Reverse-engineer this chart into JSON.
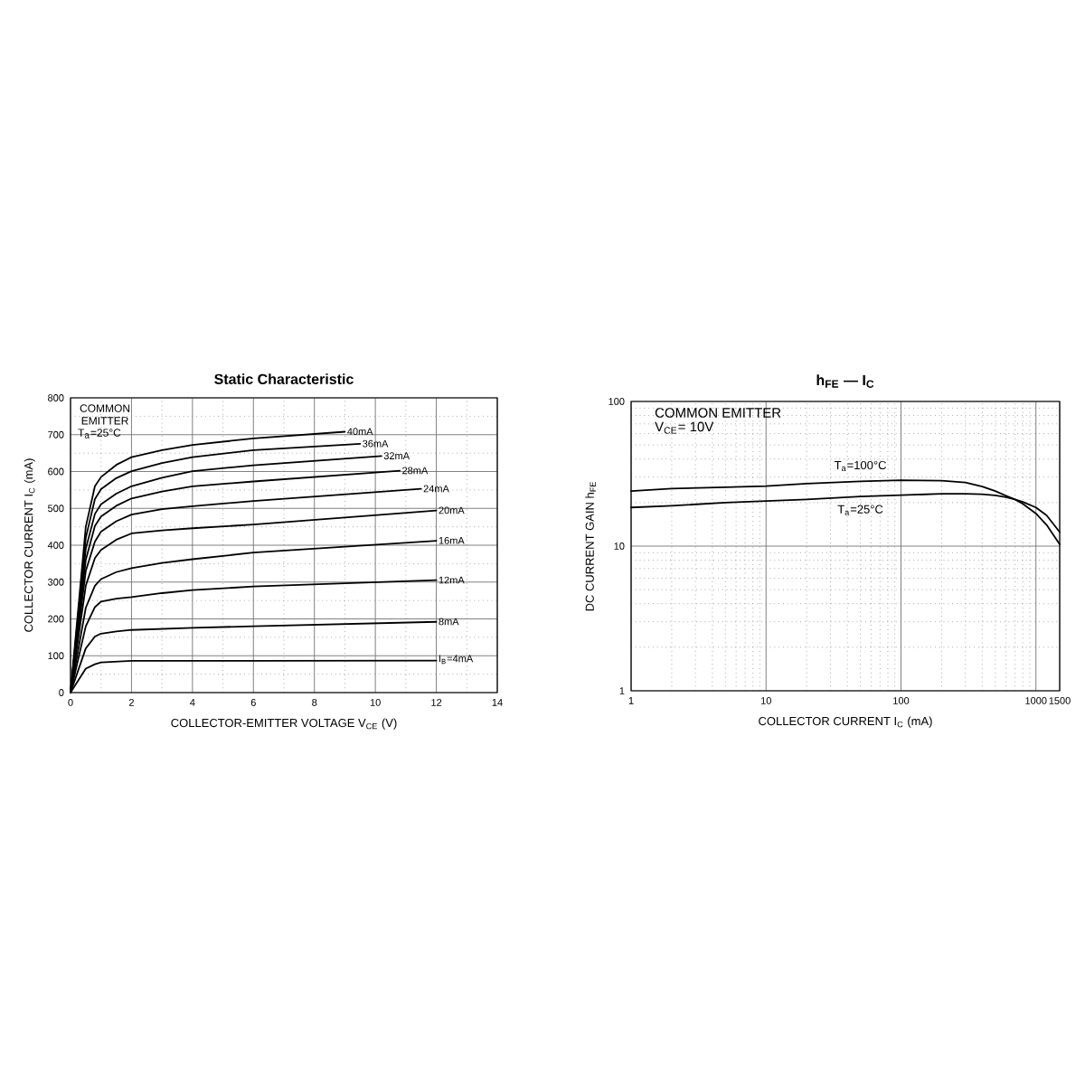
{
  "chart_data": [
    {
      "type": "line",
      "title": "Static Characteristic",
      "xlabel": "COLLECTOR-EMITTER VOLTAGE V$_{CE}$ (V)",
      "ylabel": "COLLECTOR CURRENT I$_{C}$ (mA)",
      "annotations": [
        "COMMON EMITTER",
        "T$_{a}$=25°C"
      ],
      "xlim": [
        0,
        14
      ],
      "ylim": [
        0,
        800
      ],
      "xticks": [
        0,
        2,
        4,
        6,
        8,
        10,
        12,
        14
      ],
      "yticks": [
        0,
        100,
        200,
        300,
        400,
        500,
        600,
        700,
        800
      ],
      "grid": true,
      "line_style": "solid",
      "series": [
        {
          "name": "I$_{B}$=4mA",
          "color": "#000000",
          "x": [
            0,
            0.5,
            0.8,
            1,
            1.5,
            2,
            3,
            4,
            6,
            12
          ],
          "values": [
            0,
            65,
            77,
            82,
            84,
            86,
            86,
            86,
            86,
            87
          ]
        },
        {
          "name": "8mA",
          "color": "#000000",
          "x": [
            0,
            0.5,
            0.8,
            1,
            1.5,
            2,
            3,
            4,
            6,
            12
          ],
          "values": [
            0,
            120,
            152,
            160,
            166,
            170,
            173,
            176,
            180,
            192
          ]
        },
        {
          "name": "12mA",
          "color": "#000000",
          "x": [
            0,
            0.5,
            0.8,
            1,
            1.5,
            2,
            3,
            4,
            6,
            12
          ],
          "values": [
            0,
            180,
            232,
            247,
            255,
            259,
            270,
            278,
            288,
            305
          ]
        },
        {
          "name": "16mA",
          "color": "#000000",
          "x": [
            0,
            0.5,
            0.8,
            1,
            1.5,
            2,
            3,
            4,
            6,
            12
          ],
          "values": [
            0,
            230,
            290,
            308,
            327,
            338,
            352,
            362,
            380,
            412
          ]
        },
        {
          "name": "20mA",
          "color": "#000000",
          "x": [
            0,
            0.5,
            0.8,
            1,
            1.5,
            2,
            3,
            4,
            6,
            12
          ],
          "values": [
            0,
            290,
            365,
            387,
            415,
            432,
            440,
            446,
            456,
            494
          ]
        },
        {
          "name": "24mA",
          "color": "#000000",
          "x": [
            0,
            0.5,
            0.8,
            1,
            1.5,
            2,
            3,
            4,
            6,
            11.5
          ],
          "values": [
            0,
            330,
            410,
            437,
            465,
            483,
            498,
            506,
            520,
            553
          ]
        },
        {
          "name": "28mA",
          "color": "#000000",
          "x": [
            0,
            0.5,
            0.8,
            1,
            1.5,
            2,
            3,
            4,
            6,
            10.8
          ],
          "values": [
            0,
            360,
            452,
            478,
            507,
            527,
            546,
            560,
            573,
            602
          ]
        },
        {
          "name": "32mA",
          "color": "#000000",
          "x": [
            0,
            0.5,
            0.8,
            1,
            1.5,
            2,
            3,
            4,
            6,
            10.2
          ],
          "values": [
            0,
            390,
            485,
            511,
            540,
            560,
            583,
            601,
            617,
            642
          ]
        },
        {
          "name": "36mA",
          "color": "#000000",
          "x": [
            0,
            0.5,
            0.8,
            1,
            1.5,
            2,
            3,
            4,
            6,
            9.5
          ],
          "values": [
            0,
            420,
            525,
            552,
            582,
            601,
            623,
            639,
            658,
            675
          ]
        },
        {
          "name": "40mA",
          "color": "#000000",
          "x": [
            0,
            0.5,
            0.8,
            1,
            1.5,
            2,
            3,
            4,
            6,
            9
          ],
          "values": [
            0,
            450,
            560,
            585,
            618,
            639,
            658,
            672,
            690,
            708
          ]
        }
      ]
    },
    {
      "type": "line",
      "title": "h$_{FE}$ — I$_{C}$",
      "xlabel": "COLLECTOR CURRENT I$_{C}$ (mA)",
      "ylabel": "DC CURRENT GAIN h$_{FE}$",
      "annotations": [
        "COMMON EMITTER",
        "V$_{CE}$= 10V"
      ],
      "log": "xy",
      "xlim": [
        1,
        1500
      ],
      "ylim": [
        1,
        100
      ],
      "xticks": [
        1,
        10,
        100,
        1000,
        1500
      ],
      "yticks": [
        1,
        10,
        100
      ],
      "grid": true,
      "line_style": "solid",
      "series": [
        {
          "name": "T$_{a}$=100°C",
          "color": "#000000",
          "x": [
            1,
            2,
            5,
            10,
            20,
            50,
            100,
            200,
            300,
            400,
            500,
            600,
            700,
            800,
            1000,
            1200,
            1500
          ],
          "values": [
            24,
            25,
            25.5,
            26,
            27,
            28,
            28.5,
            28.3,
            27.5,
            25.8,
            24,
            22.3,
            21,
            19.6,
            16.8,
            14,
            10.3
          ]
        },
        {
          "name": "T$_{a}$=25°C",
          "color": "#000000",
          "x": [
            1,
            2,
            5,
            10,
            20,
            50,
            100,
            200,
            300,
            400,
            500,
            600,
            700,
            800,
            1000,
            1200,
            1500
          ],
          "values": [
            18.5,
            19,
            20,
            20.5,
            21,
            22,
            22.5,
            23,
            23,
            22.8,
            22.4,
            21.8,
            21,
            20.2,
            18.5,
            16.3,
            12.5
          ]
        }
      ]
    }
  ]
}
